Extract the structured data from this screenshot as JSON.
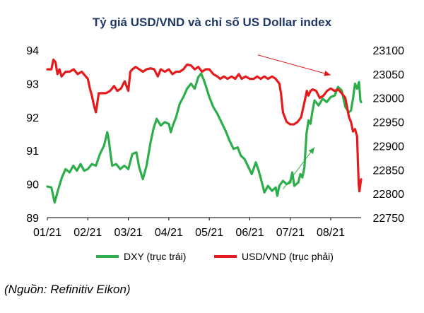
{
  "chart_data": {
    "type": "line",
    "title": "Tỷ giá USD/VND và chỉ số US Dollar index",
    "x_tick_labels": [
      "01/21",
      "02/21",
      "03/21",
      "04/21",
      "05/21",
      "06/21",
      "07/21",
      "08/21"
    ],
    "x_range": [
      0,
      7.75
    ],
    "y_left": {
      "range": [
        89,
        94
      ],
      "ticks": [
        "89",
        "90",
        "91",
        "92",
        "93",
        "94"
      ]
    },
    "y_right": {
      "range": [
        22750,
        23100
      ],
      "ticks": [
        "22750",
        "22800",
        "22850",
        "22900",
        "22950",
        "23000",
        "23050",
        "23100"
      ]
    },
    "grid": false,
    "legend_position": "bottom",
    "series": [
      {
        "name": "DXY (trục trái)",
        "color": "#2eae4a",
        "axis": "left",
        "points": [
          [
            0.0,
            89.93
          ],
          [
            0.1,
            89.9
          ],
          [
            0.18,
            89.45
          ],
          [
            0.27,
            89.85
          ],
          [
            0.36,
            90.2
          ],
          [
            0.45,
            90.45
          ],
          [
            0.55,
            90.35
          ],
          [
            0.64,
            90.55
          ],
          [
            0.73,
            90.4
          ],
          [
            0.82,
            90.6
          ],
          [
            0.91,
            90.4
          ],
          [
            1.0,
            90.45
          ],
          [
            1.1,
            90.6
          ],
          [
            1.2,
            90.55
          ],
          [
            1.3,
            90.9
          ],
          [
            1.4,
            91.15
          ],
          [
            1.48,
            91.55
          ],
          [
            1.52,
            91.3
          ],
          [
            1.55,
            91.0
          ],
          [
            1.6,
            90.55
          ],
          [
            1.7,
            90.6
          ],
          [
            1.8,
            90.45
          ],
          [
            1.9,
            90.55
          ],
          [
            2.0,
            90.45
          ],
          [
            2.1,
            90.9
          ],
          [
            2.2,
            90.95
          ],
          [
            2.27,
            90.5
          ],
          [
            2.36,
            90.15
          ],
          [
            2.45,
            90.55
          ],
          [
            2.55,
            91.25
          ],
          [
            2.62,
            91.65
          ],
          [
            2.7,
            91.95
          ],
          [
            2.8,
            91.75
          ],
          [
            2.9,
            91.85
          ],
          [
            3.0,
            91.8
          ],
          [
            3.05,
            91.55
          ],
          [
            3.1,
            91.75
          ],
          [
            3.18,
            92.0
          ],
          [
            3.27,
            92.4
          ],
          [
            3.36,
            92.6
          ],
          [
            3.45,
            92.85
          ],
          [
            3.55,
            93.0
          ],
          [
            3.64,
            92.85
          ],
          [
            3.73,
            93.2
          ],
          [
            3.8,
            93.3
          ],
          [
            3.85,
            93.15
          ],
          [
            3.91,
            92.95
          ],
          [
            4.0,
            92.6
          ],
          [
            4.1,
            92.3
          ],
          [
            4.2,
            92.1
          ],
          [
            4.3,
            91.85
          ],
          [
            4.4,
            91.6
          ],
          [
            4.5,
            91.3
          ],
          [
            4.6,
            91.05
          ],
          [
            4.7,
            91.1
          ],
          [
            4.78,
            90.85
          ],
          [
            4.87,
            90.75
          ],
          [
            4.95,
            90.55
          ],
          [
            5.05,
            90.3
          ],
          [
            5.15,
            90.65
          ],
          [
            5.22,
            90.4
          ],
          [
            5.3,
            90.05
          ],
          [
            5.36,
            89.75
          ],
          [
            5.45,
            89.95
          ],
          [
            5.55,
            89.8
          ],
          [
            5.64,
            89.9
          ],
          [
            5.68,
            89.65
          ],
          [
            5.73,
            89.95
          ],
          [
            5.82,
            90.1
          ],
          [
            5.91,
            90.0
          ],
          [
            6.0,
            90.05
          ],
          [
            6.05,
            90.35
          ],
          [
            6.1,
            89.95
          ],
          [
            6.2,
            90.05
          ],
          [
            6.25,
            90.3
          ],
          [
            6.3,
            90.2
          ],
          [
            6.35,
            90.5
          ],
          [
            6.4,
            91.5
          ],
          [
            6.45,
            91.9
          ],
          [
            6.5,
            91.8
          ],
          [
            6.55,
            92.2
          ],
          [
            6.6,
            92.5
          ],
          [
            6.7,
            92.35
          ],
          [
            6.8,
            92.55
          ],
          [
            6.9,
            92.45
          ],
          [
            7.0,
            92.6
          ],
          [
            7.1,
            92.65
          ],
          [
            7.18,
            92.9
          ],
          [
            7.27,
            92.8
          ],
          [
            7.36,
            92.3
          ],
          [
            7.45,
            92.15
          ],
          [
            7.5,
            92.2
          ],
          [
            7.55,
            92.55
          ],
          [
            7.6,
            93.0
          ],
          [
            7.65,
            92.85
          ],
          [
            7.7,
            93.05
          ],
          [
            7.73,
            92.5
          ],
          [
            7.75,
            92.45
          ]
        ]
      },
      {
        "name": "USD/VND  (trục phải)",
        "color": "#e41a1c",
        "axis": "right",
        "points": [
          [
            0.0,
            23060
          ],
          [
            0.05,
            23060
          ],
          [
            0.1,
            23060
          ],
          [
            0.15,
            23080
          ],
          [
            0.2,
            23075
          ],
          [
            0.25,
            23050
          ],
          [
            0.3,
            23060
          ],
          [
            0.35,
            23045
          ],
          [
            0.45,
            23055
          ],
          [
            0.55,
            23055
          ],
          [
            0.65,
            23060
          ],
          [
            0.75,
            23050
          ],
          [
            0.85,
            23055
          ],
          [
            0.95,
            23045
          ],
          [
            1.0,
            23040
          ],
          [
            1.05,
            23020
          ],
          [
            1.1,
            23005
          ],
          [
            1.15,
            22985
          ],
          [
            1.2,
            22970
          ],
          [
            1.27,
            23010
          ],
          [
            1.35,
            23010
          ],
          [
            1.45,
            23010
          ],
          [
            1.55,
            23015
          ],
          [
            1.65,
            23025
          ],
          [
            1.73,
            23015
          ],
          [
            1.82,
            23020
          ],
          [
            1.91,
            23035
          ],
          [
            2.0,
            23015
          ],
          [
            2.05,
            23055
          ],
          [
            2.1,
            23060
          ],
          [
            2.18,
            23065
          ],
          [
            2.27,
            23060
          ],
          [
            2.36,
            23055
          ],
          [
            2.45,
            23060
          ],
          [
            2.55,
            23062
          ],
          [
            2.64,
            23060
          ],
          [
            2.73,
            23045
          ],
          [
            2.8,
            23060
          ],
          [
            2.9,
            23055
          ],
          [
            3.0,
            23060
          ],
          [
            3.09,
            23050
          ],
          [
            3.18,
            23055
          ],
          [
            3.27,
            23055
          ],
          [
            3.36,
            23060
          ],
          [
            3.45,
            23070
          ],
          [
            3.55,
            23068
          ],
          [
            3.64,
            23060
          ],
          [
            3.73,
            23065
          ],
          [
            3.82,
            23055
          ],
          [
            3.91,
            23060
          ],
          [
            4.0,
            23060
          ],
          [
            4.1,
            23050
          ],
          [
            4.2,
            23045
          ],
          [
            4.27,
            23040
          ],
          [
            4.36,
            23045
          ],
          [
            4.45,
            23040
          ],
          [
            4.55,
            23045
          ],
          [
            4.64,
            23040
          ],
          [
            4.73,
            23050
          ],
          [
            4.8,
            23040
          ],
          [
            4.9,
            23045
          ],
          [
            5.0,
            23040
          ],
          [
            5.1,
            23040
          ],
          [
            5.18,
            23045
          ],
          [
            5.27,
            23040
          ],
          [
            5.36,
            23045
          ],
          [
            5.45,
            23040
          ],
          [
            5.55,
            23045
          ],
          [
            5.64,
            23040
          ],
          [
            5.73,
            23030
          ],
          [
            5.77,
            23010
          ],
          [
            5.82,
            22970
          ],
          [
            5.91,
            22950
          ],
          [
            6.0,
            22945
          ],
          [
            6.09,
            22945
          ],
          [
            6.18,
            22950
          ],
          [
            6.27,
            22960
          ],
          [
            6.32,
            22980
          ],
          [
            6.36,
            22995
          ],
          [
            6.41,
            23015
          ],
          [
            6.45,
            23005
          ],
          [
            6.5,
            23015
          ],
          [
            6.55,
            23018
          ],
          [
            6.64,
            23015
          ],
          [
            6.7,
            23005
          ],
          [
            6.73,
            23000
          ],
          [
            6.82,
            23005
          ],
          [
            6.91,
            23015
          ],
          [
            7.0,
            23020
          ],
          [
            7.09,
            23015
          ],
          [
            7.18,
            23018
          ],
          [
            7.27,
            23010
          ],
          [
            7.36,
            23000
          ],
          [
            7.45,
            22960
          ],
          [
            7.5,
            22950
          ],
          [
            7.55,
            22930
          ],
          [
            7.6,
            22935
          ],
          [
            7.65,
            22920
          ],
          [
            7.67,
            22870
          ],
          [
            7.69,
            22820
          ],
          [
            7.71,
            22805
          ],
          [
            7.73,
            22820
          ],
          [
            7.75,
            22830
          ]
        ]
      }
    ],
    "annotations": [
      {
        "type": "arrow",
        "color": "#e41a1c",
        "from": [
          5.2,
          23090
        ],
        "to": [
          7.0,
          23048
        ]
      },
      {
        "type": "arrow",
        "color": "#2eae4a",
        "from": [
          5.82,
          89.85
        ],
        "to": [
          6.6,
          91.1
        ]
      }
    ]
  },
  "legend": {
    "dxy_label": "DXY (trục trái)",
    "usd_label": "USD/VND  (trục phải)",
    "dxy_color": "#2eae4a",
    "usd_color": "#e41a1c"
  },
  "source_note": "(Nguồn: Refinitiv Eikon)"
}
